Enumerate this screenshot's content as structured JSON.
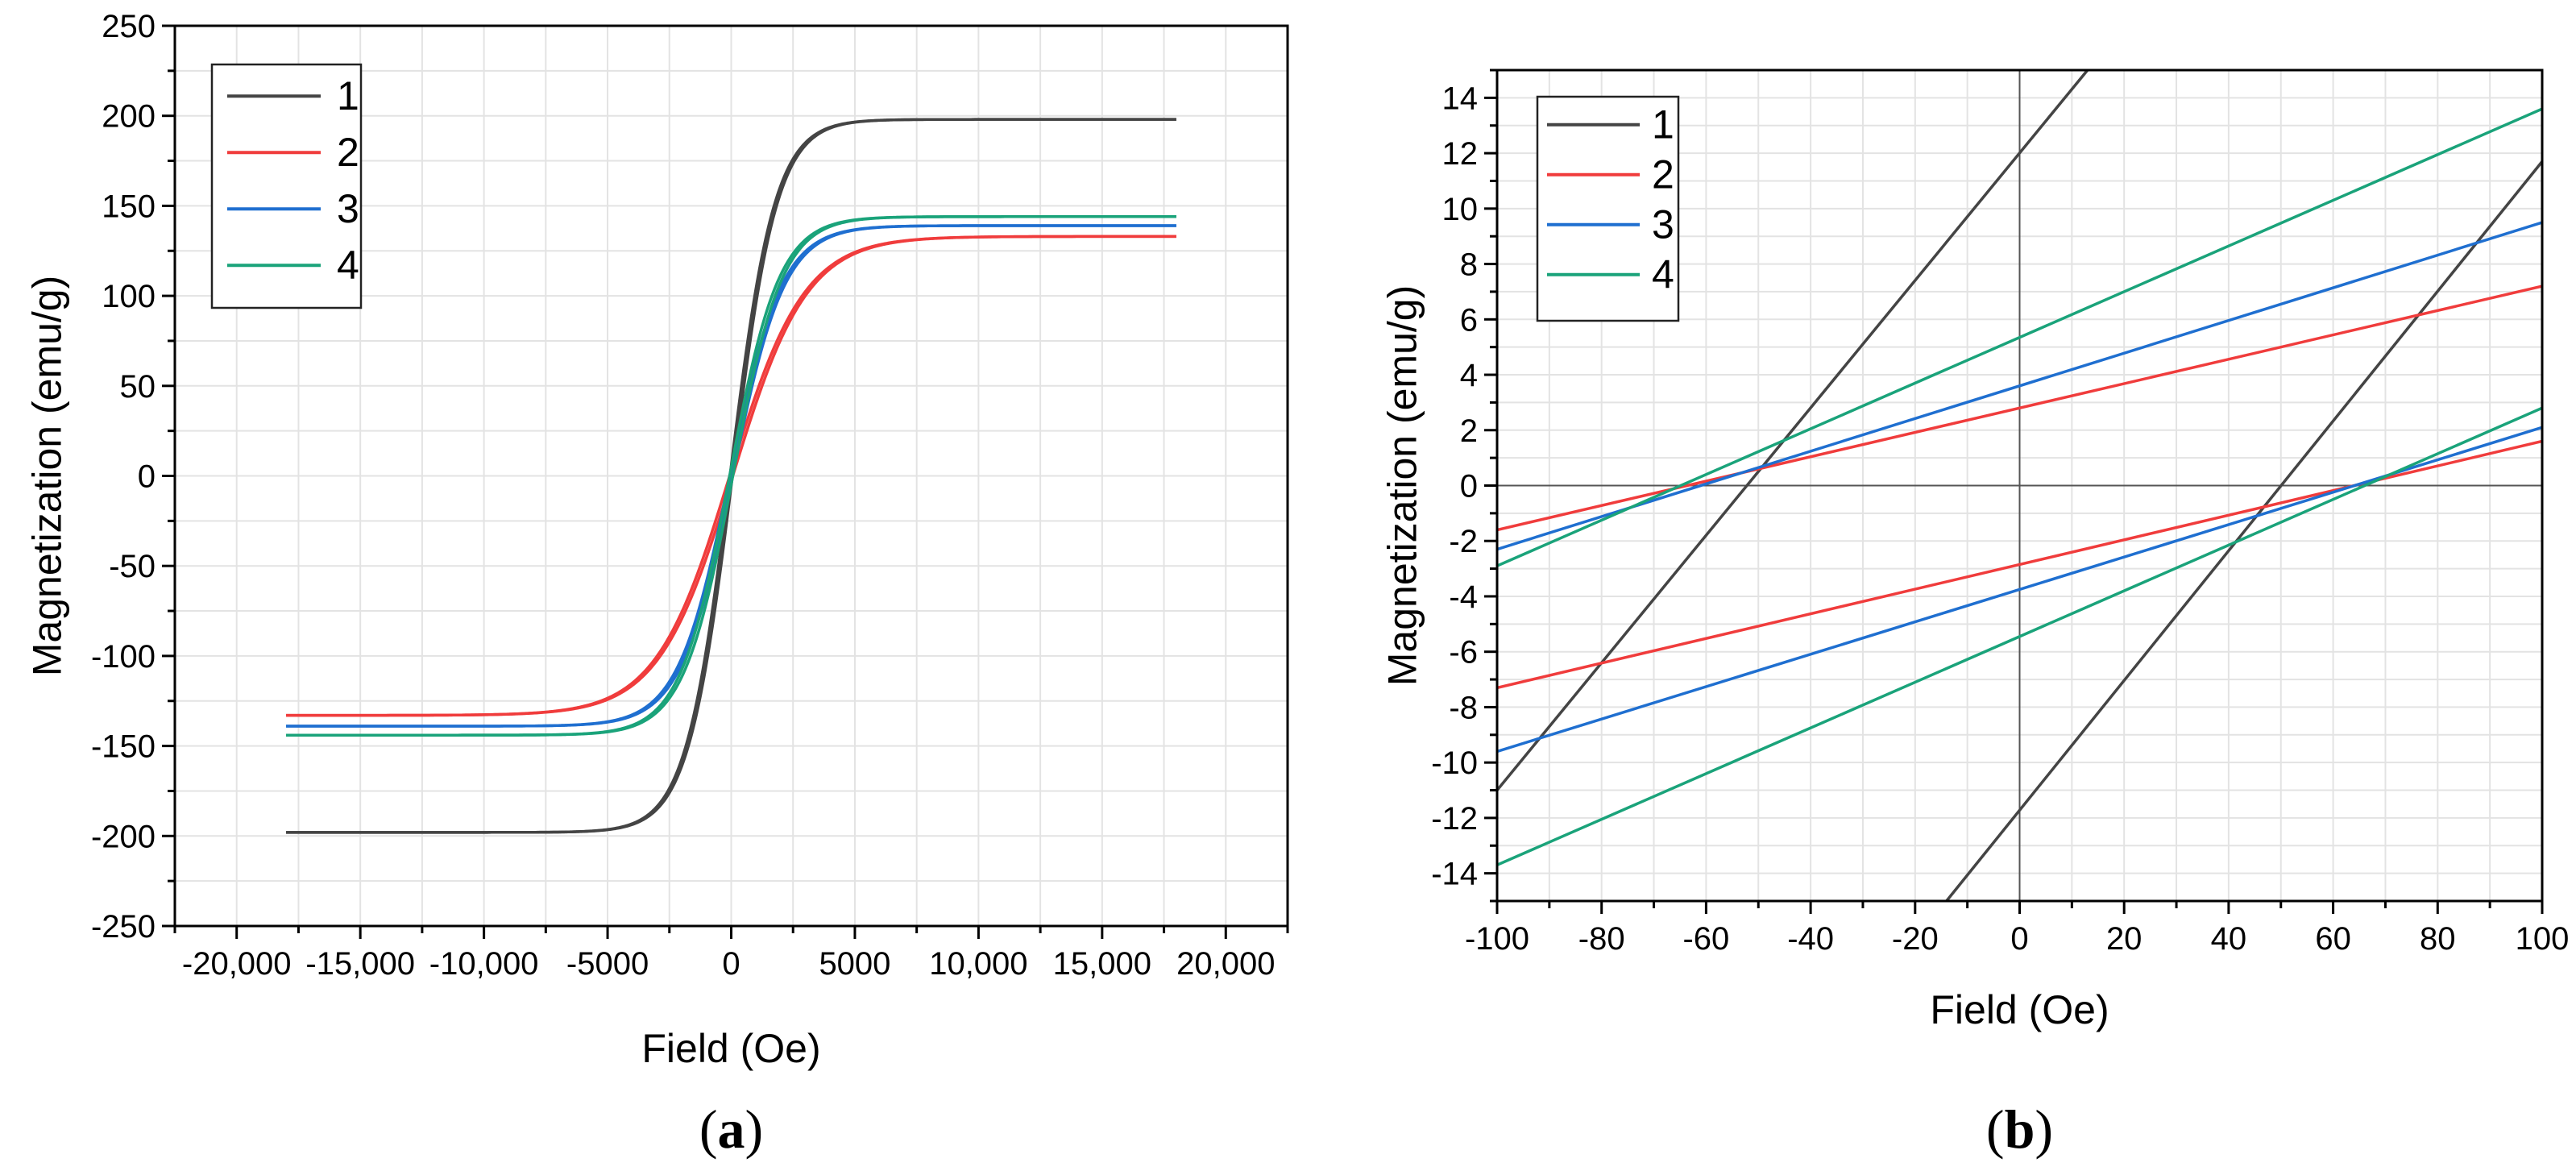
{
  "chart_data": [
    {
      "type": "line",
      "panel_label": "a",
      "xlabel": "Field (Oe)",
      "ylabel": "Magnetization (emu/g)",
      "xlim": [
        -22500,
        22500
      ],
      "ylim": [
        -250,
        250
      ],
      "x_ticks": [
        -20000,
        -15000,
        -10000,
        -5000,
        0,
        5000,
        10000,
        15000,
        20000
      ],
      "x_tick_labels": [
        "-20,000",
        "-15,000",
        "-10,000",
        "-5000",
        "0",
        "5000",
        "10,000",
        "15,000",
        "20,000"
      ],
      "y_ticks": [
        -250,
        -200,
        -150,
        -100,
        -50,
        0,
        50,
        100,
        150,
        200,
        250
      ],
      "y_tick_labels": [
        "-250",
        "-200",
        "-150",
        "-100",
        "-50",
        "0",
        "50",
        "100",
        "150",
        "200",
        "250"
      ],
      "grid": true,
      "legend": "top-left",
      "series": [
        {
          "name": "1",
          "color": "#444444",
          "saturation_emu_g": 198,
          "field_scale_oe": 1800,
          "coercivity_oe": 50
        },
        {
          "name": "2",
          "color": "#f03c3c",
          "saturation_emu_g": 133,
          "field_scale_oe": 3000,
          "coercivity_oe": 63
        },
        {
          "name": "3",
          "color": "#1f6fd0",
          "saturation_emu_g": 139,
          "field_scale_oe": 2100,
          "coercivity_oe": 58
        },
        {
          "name": "4",
          "color": "#1aa37a",
          "saturation_emu_g": 144,
          "field_scale_oe": 2000,
          "coercivity_oe": 66
        }
      ],
      "field_range_oe": [
        -18000,
        18000
      ]
    },
    {
      "type": "line",
      "panel_label": "b",
      "xlabel": "Field (Oe)",
      "ylabel": "Magnetization (emu/g)",
      "xlim": [
        -100,
        100
      ],
      "ylim": [
        -15,
        15
      ],
      "x_ticks": [
        -100,
        -80,
        -60,
        -40,
        -20,
        0,
        20,
        40,
        60,
        80,
        100
      ],
      "x_tick_labels": [
        "-100",
        "-80",
        "-60",
        "-40",
        "-20",
        "0",
        "20",
        "40",
        "60",
        "80",
        "100"
      ],
      "y_ticks": [
        -14,
        -12,
        -10,
        -8,
        -6,
        -4,
        -2,
        0,
        2,
        4,
        6,
        8,
        10,
        12,
        14
      ],
      "y_tick_labels": [
        "-14",
        "-12",
        "-10",
        "-8",
        "-6",
        "-4",
        "-2",
        "0",
        "2",
        "4",
        "6",
        "8",
        "10",
        "12",
        "14"
      ],
      "grid": true,
      "legend": "top-left",
      "series": [
        {
          "name": "1",
          "color": "#444444",
          "segments": [
            [
              [
                -100,
                -11.0
              ],
              [
                13,
                15
              ]
            ],
            [
              [
                -14,
                -15
              ],
              [
                100,
                11.7
              ]
            ]
          ]
        },
        {
          "name": "2",
          "color": "#f03c3c",
          "segments": [
            [
              [
                -100,
                -1.6
              ],
              [
                100,
                7.2
              ]
            ],
            [
              [
                -100,
                -7.3
              ],
              [
                100,
                1.6
              ]
            ]
          ]
        },
        {
          "name": "3",
          "color": "#1f6fd0",
          "segments": [
            [
              [
                -100,
                -2.3
              ],
              [
                100,
                9.5
              ]
            ],
            [
              [
                -100,
                -9.6
              ],
              [
                100,
                2.1
              ]
            ]
          ]
        },
        {
          "name": "4",
          "color": "#1aa37a",
          "segments": [
            [
              [
                -100,
                -2.9
              ],
              [
                100,
                13.6
              ]
            ],
            [
              [
                -100,
                -13.7
              ],
              [
                100,
                2.8
              ]
            ]
          ]
        }
      ]
    }
  ]
}
